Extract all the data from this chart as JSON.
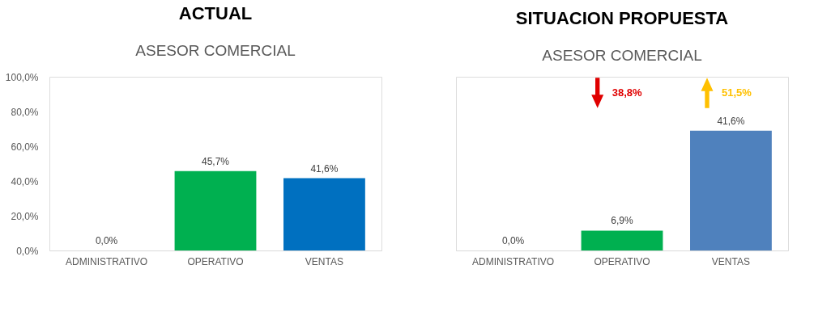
{
  "chart_data": [
    {
      "type": "bar",
      "title": "ACTUAL",
      "subtitle": "ASESOR COMERCIAL",
      "categories": [
        "ADMINISTRATIVO",
        "OPERATIVO",
        "VENTAS"
      ],
      "values": [
        0.0,
        45.7,
        41.6
      ],
      "colors": [
        "#00b050",
        "#00b050",
        "#0070c0"
      ],
      "value_labels": [
        "0,0%",
        "45,7%",
        "41,6%"
      ],
      "ylim": [
        0,
        100
      ],
      "yticks": [
        {
          "value": 0,
          "label": "0,0%"
        },
        {
          "value": 20,
          "label": "20,0%"
        },
        {
          "value": 40,
          "label": "40,0%"
        },
        {
          "value": 60,
          "label": "60,0%"
        },
        {
          "value": 80,
          "label": "80,0%"
        },
        {
          "value": 100,
          "label": "100,0%"
        }
      ]
    },
    {
      "type": "bar",
      "title": "SITUACION PROPUESTA",
      "subtitle": "ASESOR COMERCIAL",
      "categories": [
        "ADMINISTRATIVO",
        "OPERATIVO",
        "VENTAS"
      ],
      "values": [
        0.0,
        6.9,
        41.6
      ],
      "colors": [
        "#00b050",
        "#00b050",
        "#4f81bd"
      ],
      "value_labels": [
        "0,0%",
        "6,9%",
        "41,6%"
      ],
      "tick_labels": "x",
      "annotations": [
        "38,8%",
        "51,5%"
      ]
    }
  ]
}
